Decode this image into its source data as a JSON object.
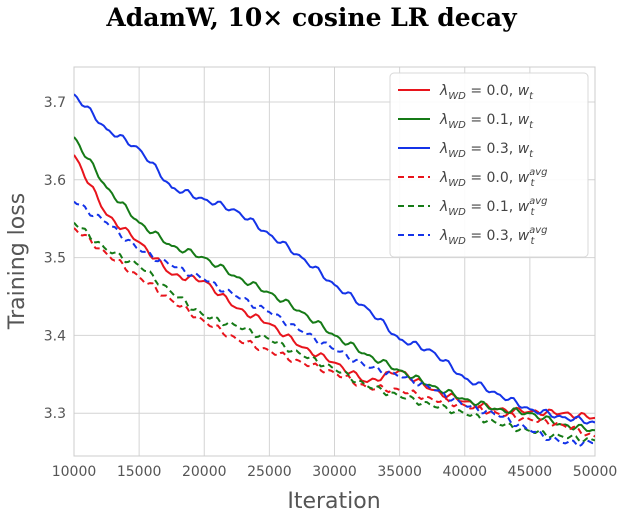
{
  "chart_data": {
    "type": "line",
    "title": "AdamW, 10× cosine LR decay",
    "xlabel": "Iteration",
    "ylabel": "Training loss",
    "xlim": [
      10000,
      50000
    ],
    "ylim": [
      3.245,
      3.745
    ],
    "grid": true,
    "legend_position": "top-right",
    "x_ticks": [
      10000,
      15000,
      20000,
      25000,
      30000,
      35000,
      40000,
      45000,
      50000
    ],
    "x_tick_labels": [
      "10000",
      "15000",
      "20000",
      "25000",
      "30000",
      "35000",
      "40000",
      "45000",
      "50000"
    ],
    "y_ticks": [
      3.3,
      3.4,
      3.5,
      3.6,
      3.7
    ],
    "y_tick_labels": [
      "3.3",
      "3.4",
      "3.5",
      "3.6",
      "3.7"
    ],
    "x": [
      10000,
      12500,
      15000,
      17500,
      20000,
      22500,
      25000,
      27500,
      30000,
      32500,
      35000,
      37500,
      40000,
      42500,
      45000,
      47500,
      50000
    ],
    "series": [
      {
        "name": "wd0.0_wt",
        "legend": {
          "lambda_value": "0.0",
          "weight": "w_t"
        },
        "color": "#e8141c",
        "dash": "solid",
        "values": [
          3.632,
          3.555,
          3.52,
          3.478,
          3.47,
          3.435,
          3.415,
          3.385,
          3.365,
          3.34,
          3.355,
          3.33,
          3.315,
          3.305,
          3.302,
          3.3,
          3.294
        ]
      },
      {
        "name": "wd0.1_wt",
        "legend": {
          "lambda_value": "0.1",
          "weight": "w_t"
        },
        "color": "#157a16",
        "dash": "solid",
        "values": [
          3.655,
          3.59,
          3.545,
          3.515,
          3.5,
          3.475,
          3.455,
          3.43,
          3.4,
          3.375,
          3.355,
          3.335,
          3.318,
          3.305,
          3.3,
          3.285,
          3.278
        ]
      },
      {
        "name": "wd0.3_wt",
        "legend": {
          "lambda_value": "0.3",
          "weight": "w_t"
        },
        "color": "#1433e8",
        "dash": "solid",
        "values": [
          3.71,
          3.665,
          3.64,
          3.59,
          3.575,
          3.56,
          3.53,
          3.5,
          3.465,
          3.435,
          3.395,
          3.38,
          3.345,
          3.325,
          3.305,
          3.295,
          3.288
        ]
      },
      {
        "name": "wd0.0_wavg",
        "legend": {
          "lambda_value": "0.0",
          "weight": "w_t^avg"
        },
        "color": "#e8141c",
        "dash": "dashed",
        "values": [
          3.538,
          3.505,
          3.475,
          3.445,
          3.418,
          3.395,
          3.38,
          3.365,
          3.352,
          3.333,
          3.33,
          3.318,
          3.31,
          3.3,
          3.292,
          3.285,
          3.27
        ]
      },
      {
        "name": "wd0.1_wavg",
        "legend": {
          "lambda_value": "0.1",
          "weight": "w_t^avg"
        },
        "color": "#157a16",
        "dash": "dashed",
        "values": [
          3.545,
          3.51,
          3.49,
          3.455,
          3.425,
          3.412,
          3.395,
          3.375,
          3.357,
          3.335,
          3.322,
          3.31,
          3.3,
          3.287,
          3.277,
          3.27,
          3.265
        ]
      },
      {
        "name": "wd0.3_wavg",
        "legend": {
          "lambda_value": "0.3",
          "weight": "w_t^avg"
        },
        "color": "#1433e8",
        "dash": "dashed",
        "values": [
          3.572,
          3.545,
          3.51,
          3.49,
          3.472,
          3.45,
          3.43,
          3.405,
          3.382,
          3.36,
          3.348,
          3.332,
          3.31,
          3.298,
          3.278,
          3.262,
          3.262
        ]
      }
    ]
  }
}
